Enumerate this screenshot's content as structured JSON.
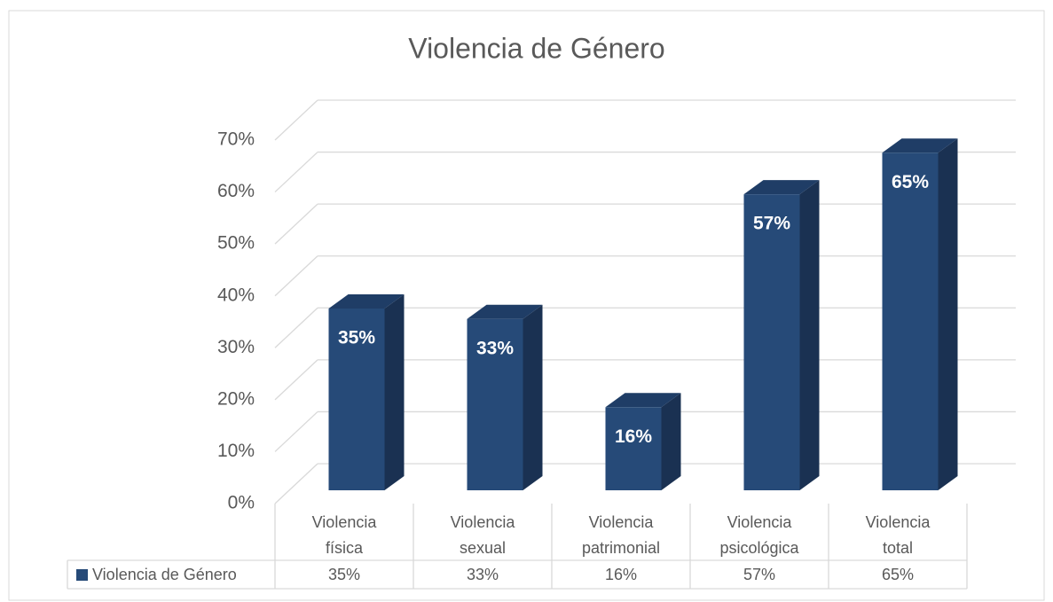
{
  "chart_data": {
    "type": "bar3d",
    "title": "Violencia de Género",
    "categories": [
      "Violencia física",
      "Violencia sexual",
      "Violencia patrimonial",
      "Violencia psicológica",
      "Violencia total"
    ],
    "series": [
      {
        "name": "Violencia de Género",
        "color": "#264a78",
        "values": [
          35,
          33,
          16,
          57,
          65
        ],
        "value_labels": [
          "35%",
          "33%",
          "16%",
          "57%",
          "65%"
        ]
      }
    ],
    "ylim": [
      0,
      70
    ],
    "yticks": [
      {
        "value": 0,
        "label": "0%"
      },
      {
        "value": 10,
        "label": "10%"
      },
      {
        "value": 20,
        "label": "20%"
      },
      {
        "value": 30,
        "label": "30%"
      },
      {
        "value": 40,
        "label": "40%"
      },
      {
        "value": 50,
        "label": "50%"
      },
      {
        "value": 60,
        "label": "60%"
      },
      {
        "value": 70,
        "label": "70%"
      }
    ],
    "grid": true,
    "data_table": true
  }
}
